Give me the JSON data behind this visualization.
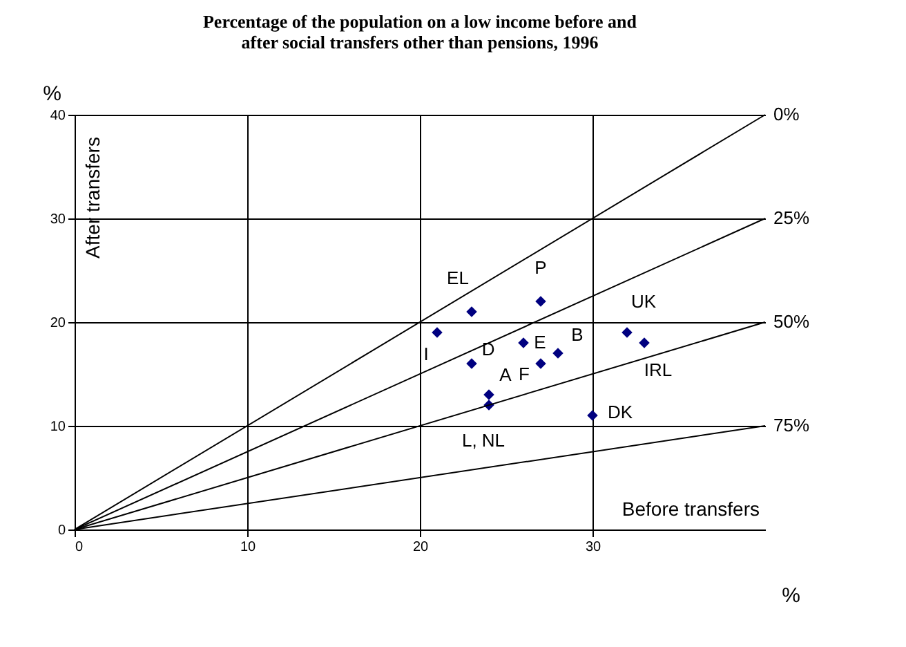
{
  "chart_data": {
    "type": "scatter",
    "title": "Percentage of the population on a low income before and\nafter social transfers other than pensions, 1996",
    "xlabel": "%",
    "ylabel": "%",
    "xlim": [
      0,
      40
    ],
    "ylim": [
      0,
      40
    ],
    "xticks": [
      0,
      10,
      20,
      30
    ],
    "yticks": [
      0,
      10,
      20,
      30,
      40
    ],
    "grid": true,
    "line_style": "solid",
    "series": [
      {
        "marker": "diamond",
        "color": "#000080",
        "x": [
          21,
          23,
          23,
          24,
          24,
          26,
          27,
          27,
          28,
          30,
          32,
          33
        ],
        "values": [
          19,
          21,
          16,
          13,
          12,
          18,
          22,
          16,
          17,
          11,
          19,
          18
        ]
      },
      {
        "type": "line",
        "marker": "none",
        "name": "0%",
        "color": "#000000",
        "x": [
          0,
          40
        ],
        "values": [
          0,
          40
        ]
      },
      {
        "type": "line",
        "marker": "none",
        "name": "25%",
        "color": "#000000",
        "x": [
          0,
          40
        ],
        "values": [
          0,
          30
        ]
      },
      {
        "type": "line",
        "marker": "none",
        "name": "50%",
        "color": "#000000",
        "x": [
          0,
          40
        ],
        "values": [
          0,
          20
        ]
      },
      {
        "type": "line",
        "marker": "none",
        "name": "75%",
        "color": "#000000",
        "x": [
          0,
          40
        ],
        "values": [
          0,
          10
        ]
      }
    ],
    "annotations": [
      {
        "text": "I",
        "x": 21,
        "y": 19
      },
      {
        "text": "EL",
        "x": 23,
        "y": 21
      },
      {
        "text": "D",
        "x": 23,
        "y": 16
      },
      {
        "text": "A",
        "x": 24,
        "y": 13
      },
      {
        "text": "L, NL",
        "x": 24,
        "y": 12
      },
      {
        "text": "E",
        "x": 26,
        "y": 18
      },
      {
        "text": "P",
        "x": 27,
        "y": 22
      },
      {
        "text": "F",
        "x": 27,
        "y": 16
      },
      {
        "text": "B",
        "x": 28,
        "y": 17
      },
      {
        "text": "DK",
        "x": 30,
        "y": 11
      },
      {
        "text": "UK",
        "x": 32,
        "y": 19
      },
      {
        "text": "IRL",
        "x": 33,
        "y": 18
      },
      "After transfers",
      "Before transfers"
    ]
  }
}
